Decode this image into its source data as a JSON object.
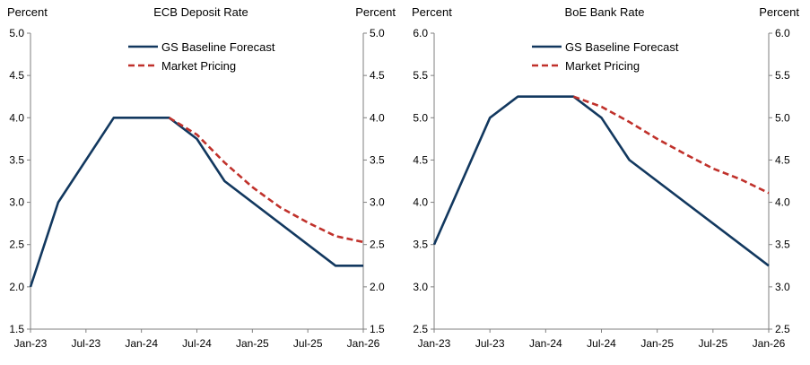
{
  "chart_data": [
    {
      "type": "line",
      "title": "ECB Deposit Rate",
      "ylabel_left": "Percent",
      "ylabel_right": "Percent",
      "ylim": [
        1.5,
        5.0
      ],
      "yticks": [
        "1.5",
        "2.0",
        "2.5",
        "3.0",
        "3.5",
        "4.0",
        "4.5",
        "5.0"
      ],
      "xlim_months": [
        0,
        36
      ],
      "xticks": [
        {
          "label": "Jan-23",
          "month": 0
        },
        {
          "label": "Jul-23",
          "month": 6
        },
        {
          "label": "Jan-24",
          "month": 12
        },
        {
          "label": "Jul-24",
          "month": 18
        },
        {
          "label": "Jan-25",
          "month": 24
        },
        {
          "label": "Jul-25",
          "month": 30
        },
        {
          "label": "Jan-26",
          "month": 36
        }
      ],
      "legend_position": "top-center",
      "series": [
        {
          "name": "GS Baseline Forecast",
          "style": "solid",
          "color": "#12385f",
          "points": [
            [
              0,
              2.0
            ],
            [
              3,
              3.0
            ],
            [
              9,
              4.0
            ],
            [
              15,
              4.0
            ],
            [
              18,
              3.75
            ],
            [
              21,
              3.25
            ],
            [
              33,
              2.25
            ],
            [
              36,
              2.25
            ]
          ]
        },
        {
          "name": "Market Pricing",
          "style": "dashed",
          "color": "#c0312b",
          "points": [
            [
              15,
              4.0
            ],
            [
              18,
              3.8
            ],
            [
              21,
              3.47
            ],
            [
              24,
              3.18
            ],
            [
              27,
              2.94
            ],
            [
              30,
              2.76
            ],
            [
              33,
              2.6
            ],
            [
              36,
              2.53
            ]
          ]
        }
      ]
    },
    {
      "type": "line",
      "title": "BoE Bank Rate",
      "ylabel_left": "Percent",
      "ylabel_right": "Percent",
      "ylim": [
        2.5,
        6.0
      ],
      "yticks": [
        "2.5",
        "3.0",
        "3.5",
        "4.0",
        "4.5",
        "5.0",
        "5.5",
        "6.0"
      ],
      "xlim_months": [
        0,
        36
      ],
      "xticks": [
        {
          "label": "Jan-23",
          "month": 0
        },
        {
          "label": "Jul-23",
          "month": 6
        },
        {
          "label": "Jan-24",
          "month": 12
        },
        {
          "label": "Jul-24",
          "month": 18
        },
        {
          "label": "Jan-25",
          "month": 24
        },
        {
          "label": "Jul-25",
          "month": 30
        },
        {
          "label": "Jan-26",
          "month": 36
        }
      ],
      "legend_position": "top-center",
      "series": [
        {
          "name": "GS Baseline Forecast",
          "style": "solid",
          "color": "#12385f",
          "points": [
            [
              0,
              3.5
            ],
            [
              6,
              5.0
            ],
            [
              9,
              5.25
            ],
            [
              15,
              5.25
            ],
            [
              18,
              5.0
            ],
            [
              21,
              4.5
            ],
            [
              36,
              3.25
            ]
          ]
        },
        {
          "name": "Market Pricing",
          "style": "dashed",
          "color": "#c0312b",
          "points": [
            [
              15,
              5.25
            ],
            [
              18,
              5.13
            ],
            [
              21,
              4.95
            ],
            [
              24,
              4.75
            ],
            [
              27,
              4.57
            ],
            [
              30,
              4.4
            ],
            [
              33,
              4.27
            ],
            [
              36,
              4.11
            ]
          ]
        }
      ]
    }
  ]
}
